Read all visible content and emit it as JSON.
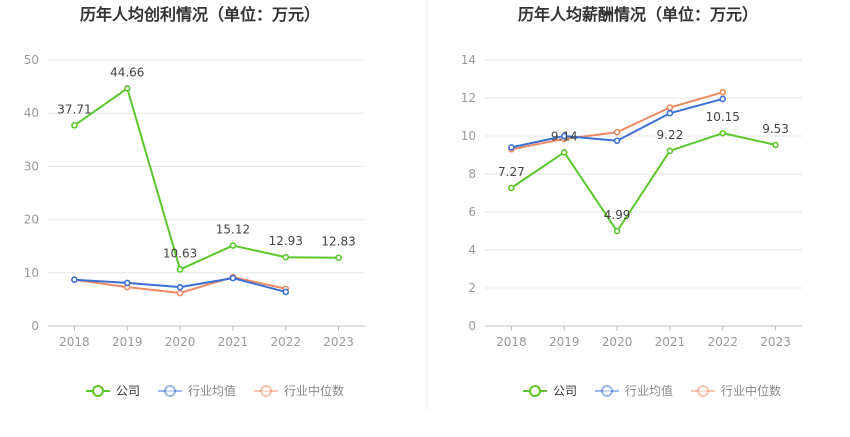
{
  "colors": {
    "company": "#5cc62c",
    "industry_avg": "#3c6fd4",
    "industry_median": "#ee8b64",
    "grid": "#e6e6e6",
    "axis": "#bfbfbf",
    "tick_text": "#9a9a9a",
    "value_label": "#444444",
    "title": "#333333",
    "divider": "#eeeeee"
  },
  "chart_data": [
    {
      "type": "line",
      "title": "历年人均创利情况（单位：万元）",
      "categories": [
        "2018",
        "2019",
        "2020",
        "2021",
        "2022",
        "2023"
      ],
      "yticks": [
        "0",
        "10",
        "20",
        "30",
        "40",
        "50"
      ],
      "ylim": [
        0,
        50
      ],
      "grid": true,
      "legend_position": "bottom",
      "series": [
        {
          "name": "公司",
          "key": "company",
          "values": [
            37.71,
            44.66,
            10.63,
            15.12,
            12.93,
            12.83
          ],
          "labels": [
            "37.71",
            "44.66",
            "10.63",
            "15.12",
            "12.93",
            "12.83"
          ]
        },
        {
          "name": "行业均值",
          "key": "industry_avg",
          "values": [
            8.7,
            8.1,
            7.3,
            9.0,
            6.4,
            null
          ],
          "labels": []
        },
        {
          "name": "行业中位数",
          "key": "industry_median",
          "values": [
            8.7,
            7.3,
            6.2,
            9.2,
            7.0,
            null
          ],
          "labels": []
        }
      ]
    },
    {
      "type": "line",
      "title": "历年人均薪酬情况（单位：万元）",
      "categories": [
        "2018",
        "2019",
        "2020",
        "2021",
        "2022",
        "2023"
      ],
      "yticks": [
        "0",
        "2",
        "4",
        "6",
        "8",
        "10",
        "12",
        "14"
      ],
      "ylim": [
        0,
        14
      ],
      "grid": true,
      "legend_position": "bottom",
      "series": [
        {
          "name": "公司",
          "key": "company",
          "values": [
            7.27,
            9.14,
            4.99,
            9.22,
            10.15,
            9.53
          ],
          "labels": [
            "7.27",
            "9.14",
            "4.99",
            "9.22",
            "10.15",
            "9.53"
          ]
        },
        {
          "name": "行业均值",
          "key": "industry_avg",
          "values": [
            9.4,
            10.0,
            9.75,
            11.2,
            11.95,
            null
          ],
          "labels": []
        },
        {
          "name": "行业中位数",
          "key": "industry_median",
          "values": [
            9.3,
            9.85,
            10.2,
            11.5,
            12.3,
            null
          ],
          "labels": []
        }
      ]
    }
  ]
}
